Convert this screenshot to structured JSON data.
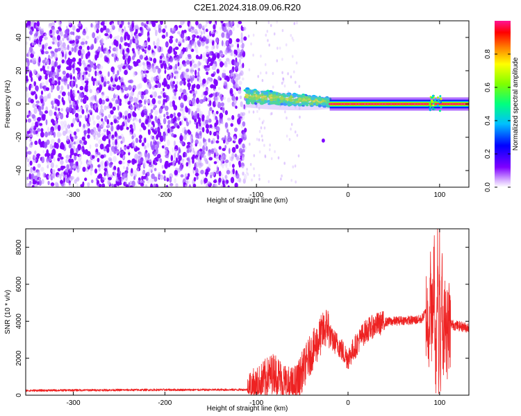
{
  "figure": {
    "title": "C2E1.2024.318.09.06.R20"
  },
  "colors": {
    "line": "#ee2222",
    "colormap": [
      "#ffffff",
      "#7f00ff",
      "#0000ff",
      "#00bfff",
      "#00ff7f",
      "#7fff00",
      "#ffff00",
      "#ff7f00",
      "#ff0000",
      "#ff1493"
    ]
  },
  "chart_data": [
    {
      "type": "heatmap",
      "title": "C2E1.2024.318.09.06.R20",
      "xlabel": "Height of straight line (km)",
      "ylabel": "Frequency (Hz)",
      "xlim": [
        -352,
        132
      ],
      "ylim": [
        -50,
        50
      ],
      "xticks": [
        -300,
        -200,
        -100,
        0,
        100
      ],
      "xtick_labels": [
        "-300",
        "-200",
        "-100",
        "0",
        "100"
      ],
      "yticks": [
        -40,
        -20,
        0,
        20,
        40
      ],
      "ytick_labels": [
        "-40",
        "-20",
        "0",
        "20",
        "40"
      ],
      "colorbar": {
        "label": "Normalized spectral amplitude",
        "range": [
          0,
          1
        ],
        "ticks": [
          0.0,
          0.2,
          0.4,
          0.6,
          0.8
        ],
        "tick_labels": [
          "0.0",
          "0.2",
          "0.4",
          "0.6",
          "0.8"
        ]
      },
      "regions": [
        {
          "name": "noise",
          "x_range": [
            -352,
            -112
          ],
          "f_range": [
            -50,
            50
          ],
          "amplitude": 0.1
        },
        {
          "name": "onset",
          "x_range": [
            -112,
            -20
          ],
          "f_center_start": 5,
          "f_center_end": 1,
          "amplitude": 0.35
        },
        {
          "name": "carrier",
          "x_range": [
            -20,
            132
          ],
          "f_center": 0,
          "amplitude": 0.9
        }
      ],
      "grid": false
    },
    {
      "type": "line",
      "xlabel": "Height of straight line (km)",
      "ylabel": "SNR (10 * v/v)",
      "xlim": [
        -352,
        132
      ],
      "ylim": [
        0,
        9000
      ],
      "xticks": [
        -300,
        -200,
        -100,
        0,
        100
      ],
      "xtick_labels": [
        "-300",
        "-200",
        "-100",
        "0",
        "100"
      ],
      "yticks": [
        0,
        2000,
        4000,
        6000,
        8000
      ],
      "ytick_labels": [
        "0",
        "2000",
        "4000",
        "6000",
        "8000"
      ],
      "series": [
        {
          "x": [
            -352,
            -300,
            -250,
            -200,
            -150,
            -110,
            -100,
            -95,
            -90,
            -85,
            -80,
            -75,
            -70,
            -65,
            -60,
            -55,
            -50,
            -45,
            -40,
            -35,
            -30,
            -25,
            -22,
            -18,
            -15,
            -10,
            -5,
            0,
            5,
            10,
            15,
            20,
            30,
            40,
            50,
            60,
            70,
            80,
            85,
            88,
            90,
            92,
            94,
            96,
            98,
            99,
            100,
            101,
            102,
            104,
            106,
            108,
            110,
            115,
            120,
            125,
            132
          ],
          "y": [
            250,
            270,
            280,
            290,
            290,
            300,
            400,
            650,
            900,
            1100,
            1250,
            950,
            700,
            500,
            450,
            700,
            1300,
            1800,
            2300,
            2700,
            3200,
            3600,
            3800,
            3000,
            2900,
            2700,
            2300,
            2000,
            2400,
            2800,
            3200,
            3500,
            3800,
            3950,
            4000,
            4050,
            4050,
            4100,
            4500,
            3800,
            5500,
            3500,
            7000,
            1500,
            8000,
            500,
            8800,
            300,
            7500,
            1800,
            5000,
            3200,
            3900,
            3800,
            3750,
            3700,
            3650
          ]
        }
      ],
      "grid": false
    }
  ]
}
